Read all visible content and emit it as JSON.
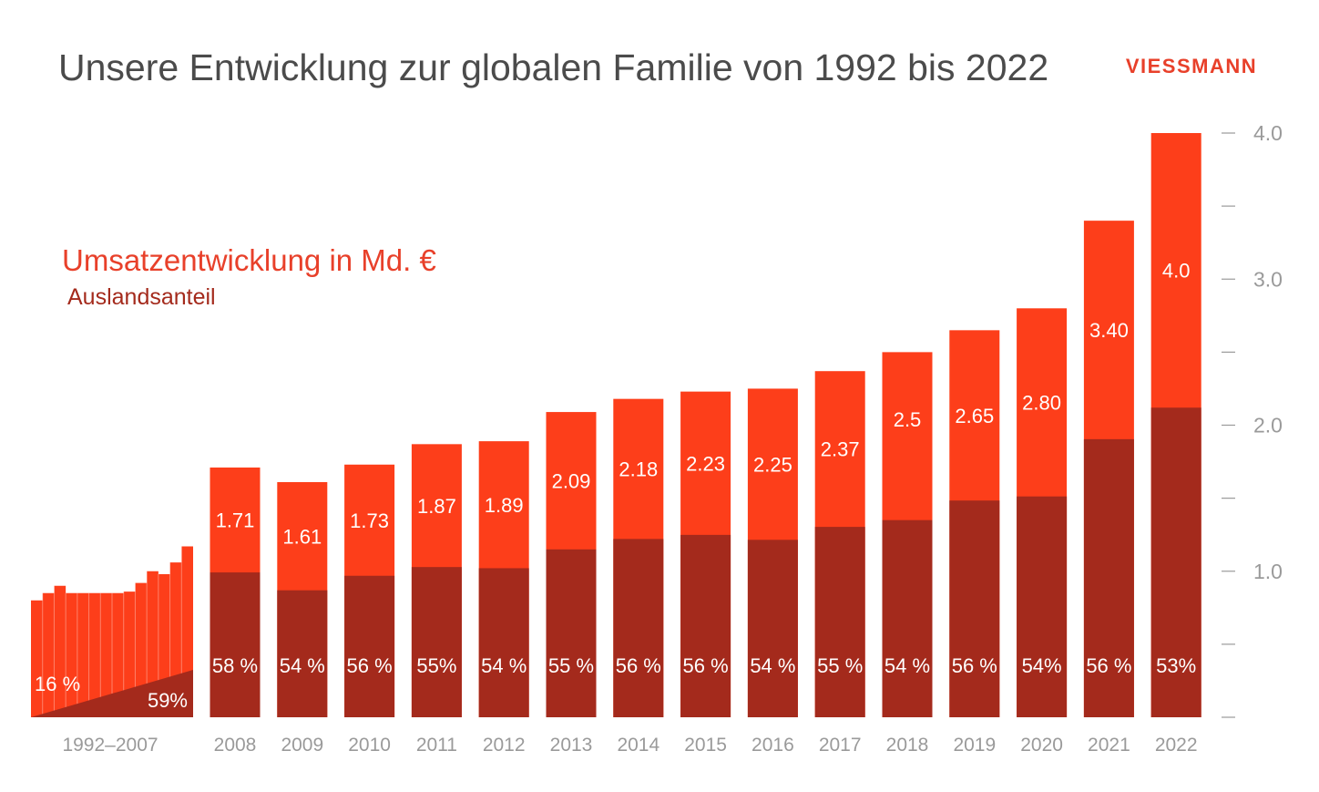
{
  "colors": {
    "revenue": "#fd3e1a",
    "foreign_share": "#a42a1c",
    "title": "#4b4b4b",
    "axis": "#9a9a9a",
    "legend_revenue": "#e8402a",
    "legend_share": "#a42a1c",
    "logo": "#e8402a"
  },
  "logo": {
    "text": "VIESSMANN"
  },
  "chart_data": {
    "type": "bar",
    "title": "Unsere Entwicklung zur globalen Familie von 1992 bis 2022",
    "legend": [
      {
        "label": "Umsatzentwicklung in Md. €",
        "color": "#fd3e1a"
      },
      {
        "label": "Auslandsanteil",
        "color": "#a42a1c"
      }
    ],
    "ylim": [
      0,
      4.0
    ],
    "yticks": [
      {
        "value": 0.0,
        "label": ""
      },
      {
        "value": 0.5,
        "label": ""
      },
      {
        "value": 1.0,
        "label": "1.0"
      },
      {
        "value": 1.5,
        "label": ""
      },
      {
        "value": 2.0,
        "label": "2.0"
      },
      {
        "value": 2.5,
        "label": ""
      },
      {
        "value": 3.0,
        "label": "3.0"
      },
      {
        "value": 3.5,
        "label": ""
      },
      {
        "value": 4.0,
        "label": "4.0"
      }
    ],
    "grid": false,
    "early_period": {
      "label": "1992–2007",
      "revenue": [
        0.8,
        0.85,
        0.9,
        0.85,
        0.85,
        0.85,
        0.85,
        0.85,
        0.86,
        0.92,
        1.0,
        0.98,
        1.06,
        1.17
      ],
      "foreign_share_start": {
        "value": 16,
        "label": "16 %"
      },
      "foreign_share_end": {
        "value": 59,
        "label": "59%"
      }
    },
    "categories": [
      "2008",
      "2009",
      "2010",
      "2011",
      "2012",
      "2013",
      "2014",
      "2015",
      "2016",
      "2017",
      "2018",
      "2019",
      "2020",
      "2021",
      "2022"
    ],
    "series": [
      {
        "name": "Umsatzentwicklung in Md. €",
        "values": [
          1.71,
          1.61,
          1.73,
          1.87,
          1.89,
          2.09,
          2.18,
          2.23,
          2.25,
          2.37,
          2.5,
          2.65,
          2.8,
          3.4,
          4.0
        ],
        "labels": [
          "1.71",
          "1.61",
          "1.73",
          "1.87",
          "1.89",
          "2.09",
          "2.18",
          "2.23",
          "2.25",
          "2.37",
          "2.5",
          "2.65",
          "2.80",
          "3.40",
          "4.0"
        ]
      },
      {
        "name": "Auslandsanteil",
        "values": [
          58,
          54,
          56,
          55,
          54,
          55,
          56,
          56,
          54,
          55,
          54,
          56,
          54,
          56,
          53
        ],
        "labels": [
          "58 %",
          "54 %",
          "56 %",
          "55%",
          "54 %",
          "55 %",
          "56 %",
          "56 %",
          "54 %",
          "55 %",
          "54 %",
          "56 %",
          "54%",
          "56 %",
          "53%"
        ]
      }
    ]
  }
}
